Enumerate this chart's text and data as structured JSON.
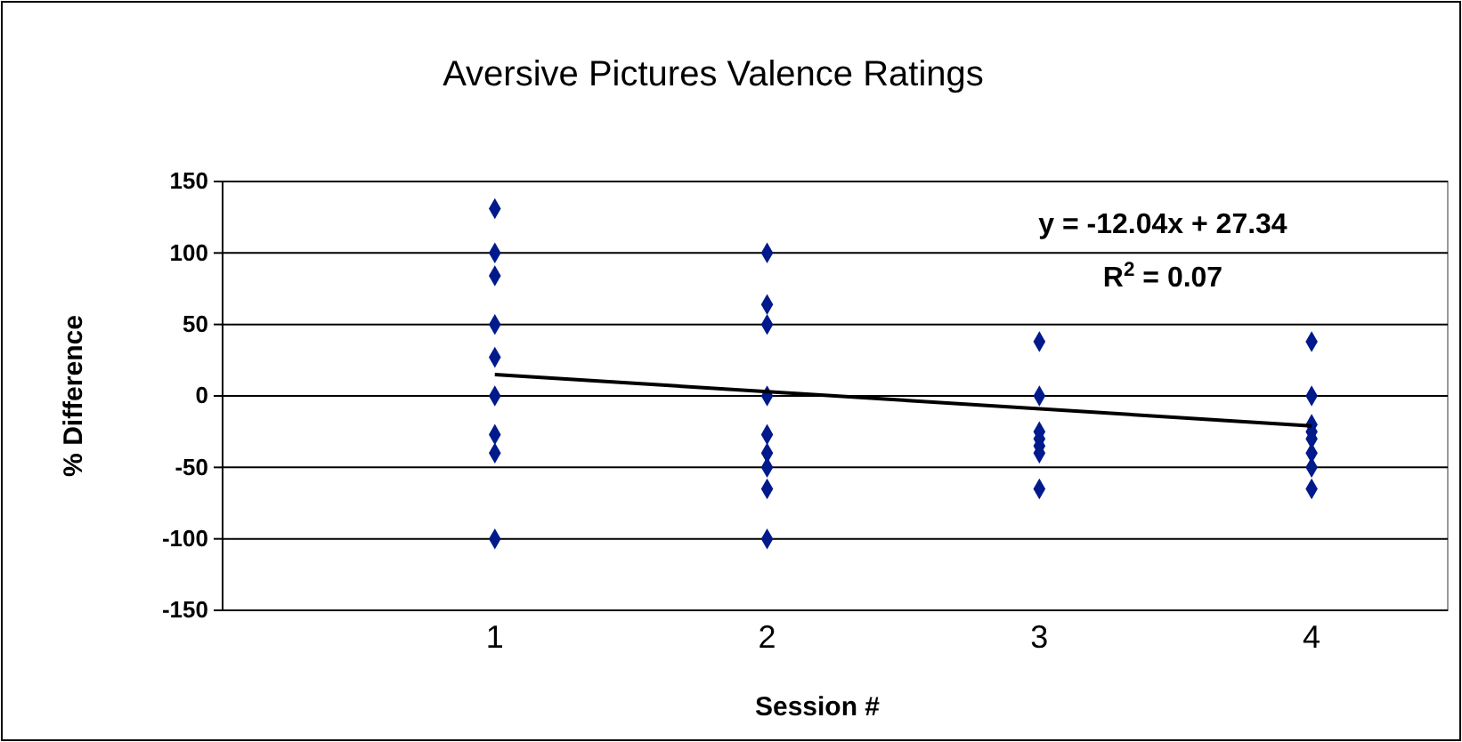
{
  "chart_data": {
    "type": "scatter",
    "title": "Aversive Pictures Valence Ratings",
    "xlabel": "Session #",
    "ylabel": "% Difference",
    "xlim": [
      0,
      4.5
    ],
    "xticks": [
      1,
      2,
      3,
      4
    ],
    "ylim": [
      -150,
      150
    ],
    "yticks": [
      -150,
      -100,
      -50,
      0,
      50,
      100,
      150
    ],
    "grid": "y",
    "series": [
      {
        "color": "#001a8c",
        "marker": "diamond",
        "x": [
          1,
          1,
          1,
          1,
          1,
          1,
          1,
          1,
          1,
          2,
          2,
          2,
          2,
          2,
          2,
          2,
          2,
          2,
          3,
          3,
          3,
          3,
          3,
          3,
          3,
          4,
          4,
          4,
          4,
          4,
          4,
          4,
          4
        ],
        "values": [
          131,
          100,
          84,
          50,
          27,
          0,
          -27,
          -40,
          -100,
          100,
          64,
          50,
          0,
          -27,
          -40,
          -50,
          -65,
          -100,
          38,
          0,
          -25,
          -30,
          -35,
          -40,
          -65,
          38,
          0,
          -20,
          -25,
          -30,
          -40,
          -50,
          -65
        ]
      },
      {
        "type": "line",
        "color": "#000000",
        "x": [
          1,
          4
        ],
        "values": [
          15,
          -21
        ]
      }
    ],
    "annotations": [
      "y = -12.04x + 27.34",
      "R$^{2}$ = 0.07"
    ]
  }
}
